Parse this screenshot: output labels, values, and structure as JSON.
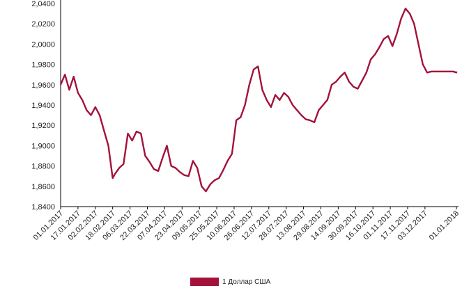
{
  "chart_data": {
    "type": "line",
    "title": "",
    "xlabel": "",
    "ylabel": "",
    "ylim": [
      1.84,
      2.04
    ],
    "yticks": [
      "1,8400",
      "1,8600",
      "1,8800",
      "1,9000",
      "1,9200",
      "1,9400",
      "1,9600",
      "1,9800",
      "2,0000",
      "2,0200",
      "2,0400"
    ],
    "xticks": [
      "01.01.2017",
      "17.01.2017",
      "02.02.2017",
      "18.02.2017",
      "06.03.2017",
      "22.03.2017",
      "07.04.2017",
      "23.04.2017",
      "09.05.2017",
      "25.05.2017",
      "10.06.2017",
      "26.06.2017",
      "12.07.2017",
      "28.07.2017",
      "13.08.2017",
      "29.08.2017",
      "14.09.2017",
      "30.09.2017",
      "16.10.2017",
      "01.11.2017",
      "17.11.2017",
      "03.12.2017",
      "01.01.2018"
    ],
    "grid": false,
    "legend_position": "bottom",
    "series": [
      {
        "name": "1 Доллар США",
        "color": "#a3123a",
        "x": [
          "01.01.2017",
          "05.01.2017",
          "09.01.2017",
          "13.01.2017",
          "17.01.2017",
          "21.01.2017",
          "25.01.2017",
          "29.01.2017",
          "02.02.2017",
          "06.02.2017",
          "10.02.2017",
          "14.02.2017",
          "18.02.2017",
          "20.02.2017",
          "24.02.2017",
          "28.02.2017",
          "04.03.2017",
          "08.03.2017",
          "12.03.2017",
          "16.03.2017",
          "20.03.2017",
          "24.03.2017",
          "28.03.2017",
          "01.04.2017",
          "05.04.2017",
          "09.04.2017",
          "13.04.2017",
          "17.04.2017",
          "21.04.2017",
          "25.04.2017",
          "29.04.2017",
          "03.05.2017",
          "07.05.2017",
          "11.05.2017",
          "15.05.2017",
          "19.05.2017",
          "23.05.2017",
          "27.05.2017",
          "31.05.2017",
          "04.06.2017",
          "08.06.2017",
          "12.06.2017",
          "16.06.2017",
          "20.06.2017",
          "24.06.2017",
          "28.06.2017",
          "02.07.2017",
          "06.07.2017",
          "10.07.2017",
          "14.07.2017",
          "18.07.2017",
          "22.07.2017",
          "26.07.2017",
          "30.07.2017",
          "03.08.2017",
          "07.08.2017",
          "11.08.2017",
          "15.08.2017",
          "19.08.2017",
          "23.08.2017",
          "27.08.2017",
          "31.08.2017",
          "04.09.2017",
          "08.09.2017",
          "12.09.2017",
          "16.09.2017",
          "20.09.2017",
          "24.09.2017",
          "28.09.2017",
          "02.10.2017",
          "06.10.2017",
          "10.10.2017",
          "14.10.2017",
          "18.10.2017",
          "22.10.2017",
          "26.10.2017",
          "30.10.2017",
          "03.11.2017",
          "07.11.2017",
          "11.11.2017",
          "15.11.2017",
          "19.11.2017",
          "23.11.2017",
          "27.11.2017",
          "01.12.2017",
          "05.12.2017",
          "09.12.2017",
          "13.12.2017",
          "17.12.2017",
          "21.12.2017",
          "25.12.2017",
          "29.12.2017",
          "01.01.2018",
          "05.01.2018"
        ],
        "values": [
          1.96,
          1.97,
          1.955,
          1.968,
          1.952,
          1.945,
          1.935,
          1.93,
          1.938,
          1.93,
          1.915,
          1.9,
          1.868,
          1.872,
          1.878,
          1.882,
          1.912,
          1.905,
          1.914,
          1.912,
          1.89,
          1.884,
          1.877,
          1.875,
          1.888,
          1.9,
          1.88,
          1.878,
          1.874,
          1.871,
          1.87,
          1.885,
          1.878,
          1.86,
          1.855,
          1.862,
          1.866,
          1.868,
          1.876,
          1.885,
          1.892,
          1.925,
          1.928,
          1.94,
          1.96,
          1.975,
          1.978,
          1.955,
          1.945,
          1.938,
          1.95,
          1.945,
          1.952,
          1.948,
          1.94,
          1.935,
          1.93,
          1.926,
          1.925,
          1.923,
          1.935,
          1.94,
          1.945,
          1.96,
          1.963,
          1.968,
          1.972,
          1.963,
          1.958,
          1.956,
          1.964,
          1.972,
          1.985,
          1.99,
          1.997,
          2.005,
          2.008,
          1.998,
          2.01,
          2.025,
          2.035,
          2.03,
          2.02,
          2.0,
          1.98,
          1.972,
          1.973,
          1.973,
          1.973,
          1.973,
          1.973,
          1.973,
          1.972,
          1.973
        ]
      }
    ]
  }
}
